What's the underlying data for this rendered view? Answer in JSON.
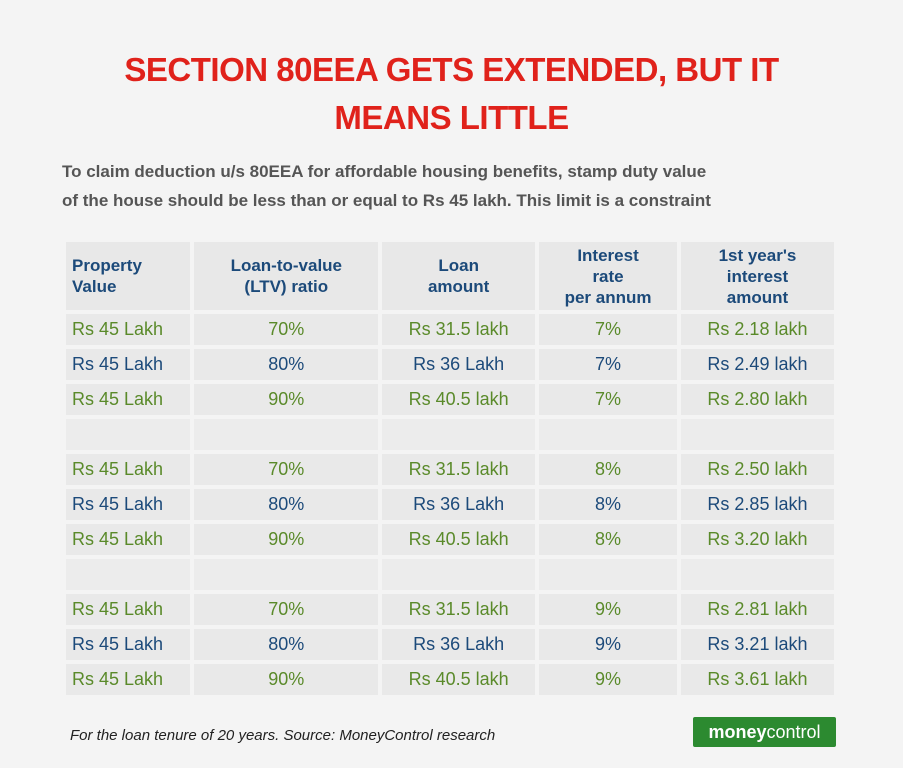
{
  "title_line1": "SECTION 80EEA GETS EXTENDED, BUT IT",
  "title_line2": "MEANS LITTLE",
  "subtitle_line1": "To claim deduction u/s 80EEA for affordable housing benefits, stamp duty value",
  "subtitle_line2": "of the house should be less than or equal to Rs 45 lakh. This limit is a constraint",
  "headers": [
    [
      "Property",
      "Value"
    ],
    [
      "Loan-to-value",
      "(LTV) ratio"
    ],
    [
      "Loan",
      "amount"
    ],
    [
      "Interest",
      "rate",
      "per annum"
    ],
    [
      "1st year's",
      "interest",
      "amount"
    ]
  ],
  "rows": [
    [
      "Rs 45 Lakh",
      "70%",
      "Rs 31.5 lakh",
      "7%",
      "Rs 2.18 lakh"
    ],
    [
      "Rs 45 Lakh",
      "80%",
      "Rs 36 Lakh",
      "7%",
      "Rs 2.49 lakh"
    ],
    [
      "Rs 45 Lakh",
      "90%",
      "Rs 40.5 lakh",
      "7%",
      "Rs 2.80 lakh"
    ],
    [
      "Rs 45 Lakh",
      "70%",
      "Rs 31.5 lakh",
      "8%",
      "Rs 2.50 lakh"
    ],
    [
      "Rs 45 Lakh",
      "80%",
      "Rs 36 Lakh",
      "8%",
      "Rs 2.85 lakh"
    ],
    [
      "Rs 45 Lakh",
      "90%",
      "Rs 40.5 lakh",
      "8%",
      "Rs 3.20 lakh"
    ],
    [
      "Rs 45 Lakh",
      "70%",
      "Rs 31.5 lakh",
      "9%",
      "Rs 2.81 lakh"
    ],
    [
      "Rs 45 Lakh",
      "80%",
      "Rs 36 Lakh",
      "9%",
      "Rs 3.21 lakh"
    ],
    [
      "Rs 45 Lakh",
      "90%",
      "Rs 40.5 lakh",
      "9%",
      "Rs 3.61 lakh"
    ]
  ],
  "footnote": "For the loan tenure of 20 years. Source: MoneyControl research",
  "logo_part1": "money",
  "logo_part2": "control",
  "colors": {
    "title": "#e0221b",
    "header": "#1c4a7a",
    "green": "#5a8a2a",
    "logo_bg": "#2c8a30"
  }
}
